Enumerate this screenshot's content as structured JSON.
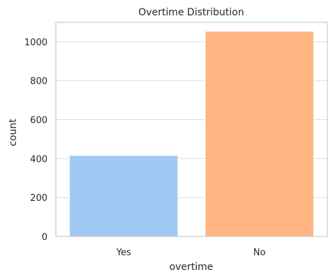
{
  "chart_data": {
    "type": "bar",
    "title": "Overtime Distribution",
    "xlabel": "overtime",
    "ylabel": "count",
    "categories": [
      "Yes",
      "No"
    ],
    "values": [
      416,
      1054
    ],
    "ylim": [
      0,
      1100
    ],
    "yticks": [
      0,
      200,
      400,
      600,
      800,
      1000
    ],
    "colors": [
      "#a1c9f4",
      "#ffb482"
    ],
    "grid": "horizontal"
  }
}
